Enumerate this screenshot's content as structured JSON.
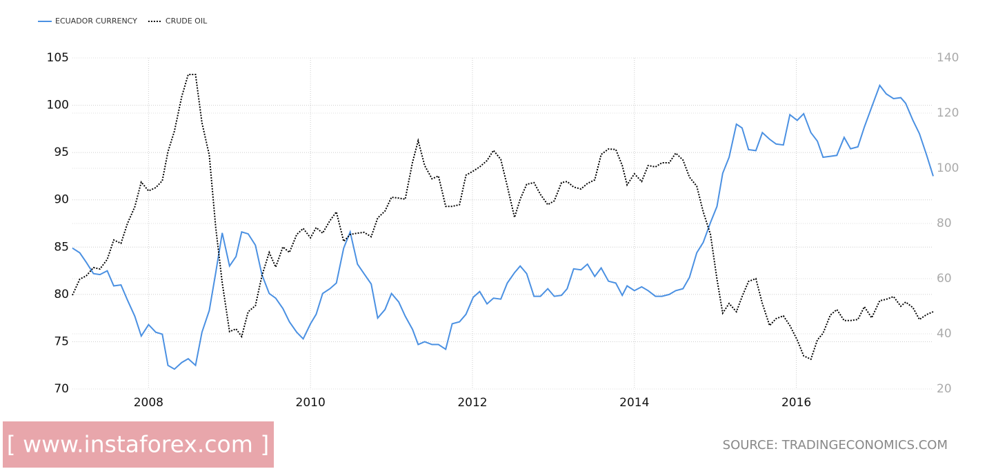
{
  "chart_data": {
    "type": "line",
    "legend": "top-left",
    "grid": true,
    "source": "SOURCE: TRADINGECONOMICS.COM",
    "watermark": "[ www.instaforex.com ]",
    "xlim": [
      2007.06,
      2017.69
    ],
    "xticks": [
      2008,
      2010,
      2012,
      2014,
      2016
    ],
    "ylim": [
      70,
      105
    ],
    "yticks": [
      70,
      75,
      80,
      85,
      90,
      95,
      100,
      105
    ],
    "y2lim": [
      20,
      140
    ],
    "y2ticks": [
      20,
      40,
      60,
      80,
      100,
      120,
      140
    ],
    "x": [
      2007.06,
      2007.15,
      2007.23,
      2007.32,
      2007.4,
      2007.49,
      2007.57,
      2007.66,
      2007.74,
      2007.83,
      2007.91,
      2008.0,
      2008.09,
      2008.17,
      2008.24,
      2008.32,
      2008.41,
      2008.49,
      2008.58,
      2008.66,
      2008.75,
      2008.83,
      2008.91,
      2009.0,
      2009.08,
      2009.15,
      2009.23,
      2009.32,
      2009.4,
      2009.49,
      2009.57,
      2009.66,
      2009.74,
      2009.83,
      2009.91,
      2010.0,
      2010.07,
      2010.15,
      2010.24,
      2010.32,
      2010.41,
      2010.49,
      2010.58,
      2010.66,
      2010.75,
      2010.83,
      2010.92,
      2011.0,
      2011.09,
      2011.17,
      2011.26,
      2011.33,
      2011.41,
      2011.5,
      2011.58,
      2011.67,
      2011.75,
      2011.84,
      2011.92,
      2012.01,
      2012.09,
      2012.18,
      2012.26,
      2012.35,
      2012.43,
      2012.52,
      2012.59,
      2012.67,
      2012.76,
      2012.84,
      2012.93,
      2013.01,
      2013.1,
      2013.17,
      2013.25,
      2013.34,
      2013.42,
      2013.51,
      2013.59,
      2013.68,
      2013.77,
      2013.85,
      2013.91,
      2014.0,
      2014.09,
      2014.17,
      2014.26,
      2014.34,
      2014.43,
      2014.51,
      2014.6,
      2014.68,
      2014.77,
      2014.85,
      2014.94,
      2015.02,
      2015.09,
      2015.17,
      2015.26,
      2015.33,
      2015.41,
      2015.5,
      2015.58,
      2015.67,
      2015.75,
      2015.84,
      2015.92,
      2016.01,
      2016.09,
      2016.18,
      2016.26,
      2016.33,
      2016.42,
      2016.5,
      2016.59,
      2016.67,
      2016.76,
      2016.84,
      2016.93,
      2017.03,
      2017.11,
      2017.2,
      2017.29,
      2017.35,
      2017.44,
      2017.52,
      2017.61,
      2017.69
    ],
    "series": [
      {
        "name": "ECUADOR CURRENCY",
        "color": "#4a90e2",
        "dash": "solid",
        "values": [
          84.9,
          84.4,
          83.4,
          82.2,
          82.1,
          82.5,
          80.9,
          81.0,
          79.4,
          77.7,
          75.6,
          76.8,
          76.0,
          75.8,
          72.5,
          72.1,
          72.8,
          73.2,
          72.5,
          76.0,
          78.3,
          82.3,
          86.5,
          83.0,
          84.0,
          86.6,
          86.4,
          85.2,
          82.1,
          80.1,
          79.6,
          78.5,
          77.1,
          76.0,
          75.3,
          76.9,
          77.9,
          80.1,
          80.6,
          81.2,
          84.9,
          86.6,
          83.2,
          82.2,
          81.1,
          77.5,
          78.4,
          80.1,
          79.2,
          77.7,
          76.3,
          74.7,
          75.0,
          74.7,
          74.7,
          74.2,
          76.9,
          77.1,
          77.9,
          79.7,
          80.3,
          79.0,
          79.6,
          79.5,
          81.2,
          82.3,
          83.0,
          82.2,
          79.8,
          79.8,
          80.6,
          79.8,
          79.9,
          80.6,
          82.7,
          82.6,
          83.2,
          81.9,
          82.8,
          81.4,
          81.2,
          79.9,
          80.9,
          80.4,
          80.8,
          80.4,
          79.8,
          79.8,
          80.0,
          80.4,
          80.6,
          81.8,
          84.4,
          85.5,
          87.6,
          89.3,
          92.8,
          94.5,
          98.0,
          97.6,
          95.3,
          95.2,
          97.1,
          96.4,
          95.9,
          95.8,
          99.0,
          98.4,
          99.1,
          97.1,
          96.2,
          94.5,
          94.6,
          94.7,
          96.6,
          95.4,
          95.6,
          97.7,
          99.8,
          102.1,
          101.2,
          100.7,
          100.8,
          100.2,
          98.4,
          97.0,
          94.7,
          92.5
        ]
      },
      {
        "name": "CRUDE OIL",
        "color": "#000000",
        "dash": "dotted",
        "axis": "y2",
        "values": [
          54,
          59.8,
          61,
          64,
          63.5,
          67,
          74,
          72.8,
          80,
          86,
          95,
          91.8,
          93,
          95.5,
          106,
          113.5,
          126,
          134,
          134,
          116.5,
          104.8,
          78.5,
          58.5,
          40.8,
          41.8,
          39,
          48,
          50.2,
          61,
          69.5,
          64.2,
          71.5,
          69.5,
          76,
          78.2,
          74.8,
          78.5,
          76.5,
          81,
          84.2,
          73.5,
          76,
          76.5,
          76.8,
          75.2,
          82,
          84.5,
          89.5,
          89.2,
          88.8,
          102.2,
          110,
          101,
          96.2,
          97.2,
          86.2,
          86.2,
          86.8,
          97.5,
          99,
          100.5,
          102.8,
          106.5,
          103.2,
          93.5,
          82.2,
          88.8,
          94.2,
          94.8,
          90.5,
          86.8,
          88.2,
          94.8,
          95.2,
          93.2,
          92.5,
          94.5,
          95.8,
          105,
          107,
          106.8,
          101,
          94,
          98,
          95.2,
          101,
          100.5,
          102,
          102,
          105.5,
          103,
          96.8,
          93.5,
          84.2,
          76,
          59.8,
          47.5,
          51,
          48,
          53.5,
          59,
          60,
          51,
          43,
          45.5,
          46.5,
          43,
          37.8,
          32,
          30.8,
          37.8,
          40.2,
          46.8,
          48.8,
          44.8,
          44.8,
          45.2,
          49.8,
          45.8,
          52,
          52.5,
          53.5,
          50,
          51.5,
          49.5,
          45.2,
          47,
          48
        ]
      }
    ]
  }
}
